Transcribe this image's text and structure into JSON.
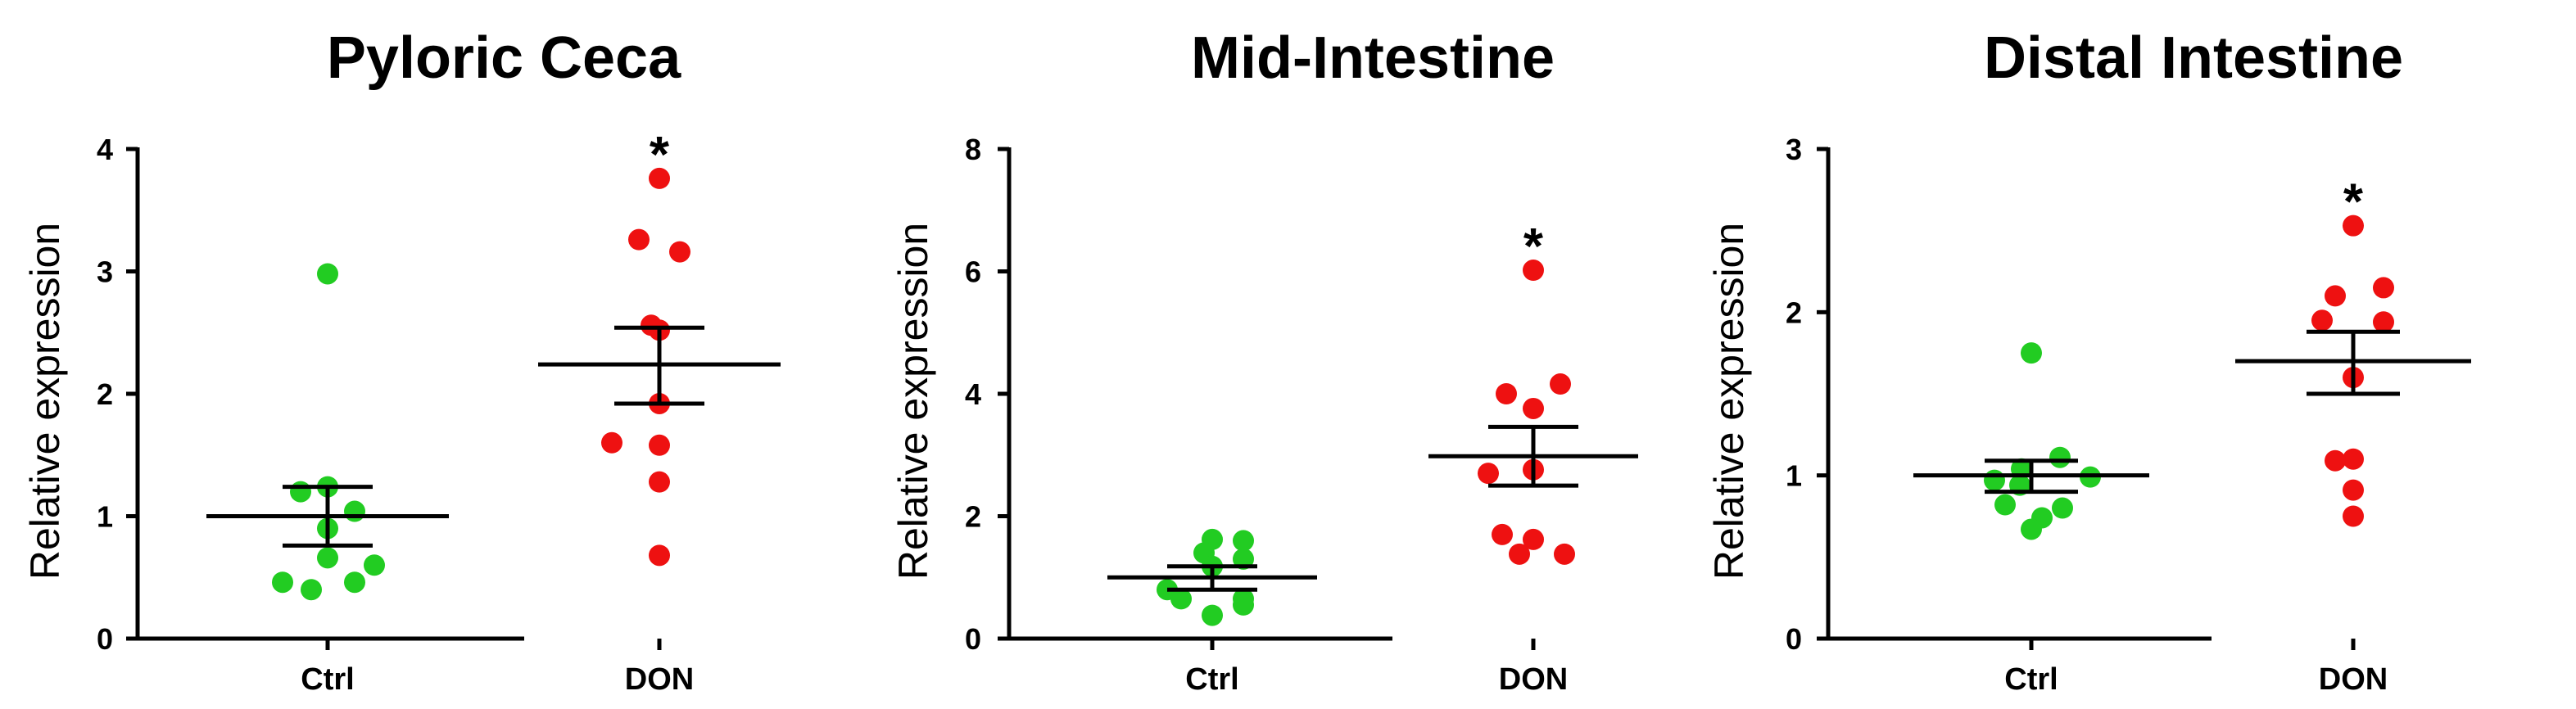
{
  "chart_data": [
    {
      "type": "scatter",
      "title": "Pyloric Ceca",
      "ylabel": "Relative expression",
      "xlabel": "",
      "ylim": [
        0,
        4
      ],
      "yticks": [
        "0",
        "1",
        "2",
        "3",
        "4"
      ],
      "categories": [
        "Ctrl",
        "DON"
      ],
      "annotations": [
        {
          "category": "DON",
          "text": "*"
        }
      ],
      "series": [
        {
          "category": "Ctrl",
          "color": "#22cc22",
          "values": [
            2.98,
            1.24,
            1.2,
            1.04,
            0.9,
            0.66,
            0.6,
            0.46,
            0.46,
            0.4
          ],
          "mean": 1.0,
          "sem_low": 0.76,
          "sem_high": 1.24
        },
        {
          "category": "DON",
          "color": "#ee1111",
          "values": [
            3.76,
            3.26,
            3.16,
            2.56,
            2.52,
            1.92,
            1.6,
            1.58,
            1.28,
            0.68
          ],
          "mean": 2.24,
          "sem_low": 1.92,
          "sem_high": 2.54
        }
      ]
    },
    {
      "type": "scatter",
      "title": "Mid-Intestine",
      "ylabel": "Relative expression",
      "xlabel": "",
      "ylim": [
        0,
        8
      ],
      "yticks": [
        "0",
        "2",
        "4",
        "6",
        "8"
      ],
      "categories": [
        "Ctrl",
        "DON"
      ],
      "annotations": [
        {
          "category": "DON",
          "text": "*"
        }
      ],
      "series": [
        {
          "category": "Ctrl",
          "color": "#22cc22",
          "values": [
            1.62,
            1.6,
            1.4,
            1.3,
            1.18,
            0.8,
            0.65,
            0.65,
            0.55,
            0.38
          ],
          "mean": 1.0,
          "sem_low": 0.8,
          "sem_high": 1.18
        },
        {
          "category": "DON",
          "color": "#ee1111",
          "values": [
            6.02,
            4.16,
            4.0,
            3.76,
            2.76,
            2.7,
            1.7,
            1.62,
            1.38,
            1.38
          ],
          "mean": 2.98,
          "sem_low": 2.5,
          "sem_high": 3.46
        }
      ]
    },
    {
      "type": "scatter",
      "title": "Distal Intestine",
      "ylabel": "Relative expression",
      "xlabel": "",
      "ylim": [
        0,
        3
      ],
      "yticks": [
        "0",
        "1",
        "2",
        "3"
      ],
      "categories": [
        "Ctrl",
        "DON"
      ],
      "annotations": [
        {
          "category": "DON",
          "text": "*"
        }
      ],
      "series": [
        {
          "category": "Ctrl",
          "color": "#22cc22",
          "values": [
            1.75,
            1.11,
            1.04,
            0.99,
            0.97,
            0.94,
            0.82,
            0.8,
            0.74,
            0.67
          ],
          "mean": 1.0,
          "sem_low": 0.9,
          "sem_high": 1.09
        },
        {
          "category": "DON",
          "color": "#ee1111",
          "values": [
            2.53,
            2.15,
            2.1,
            1.95,
            1.94,
            1.6,
            1.1,
            1.09,
            0.91,
            0.75
          ],
          "mean": 1.7,
          "sem_low": 1.5,
          "sem_high": 1.88
        }
      ]
    }
  ]
}
